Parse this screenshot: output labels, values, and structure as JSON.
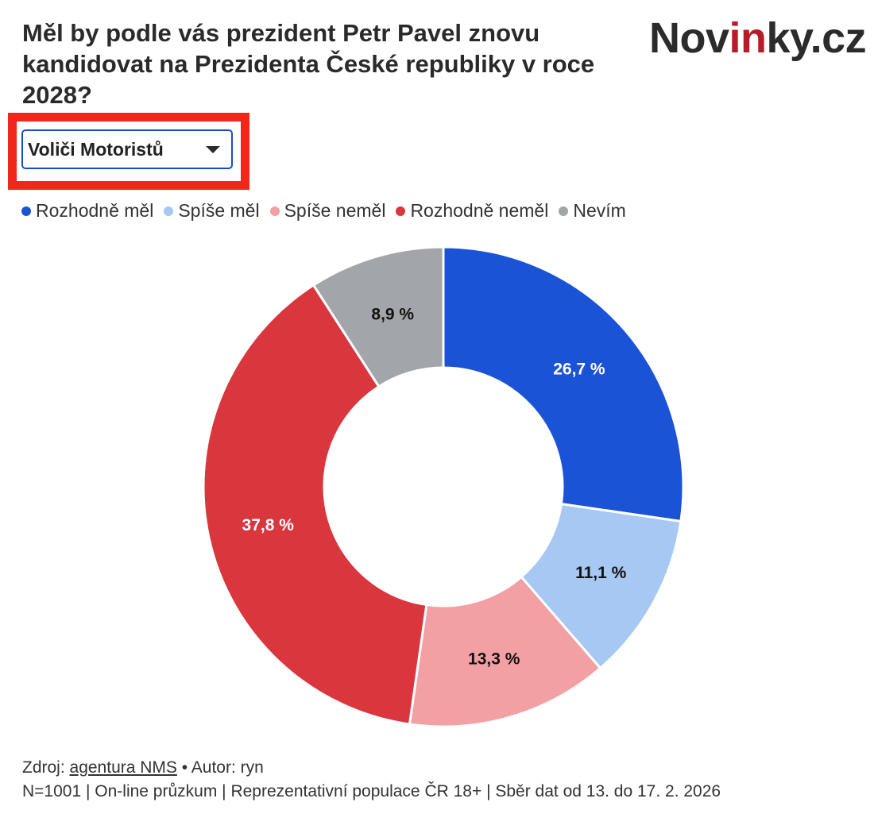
{
  "header": {
    "title": "Měl by podle vás prezident Petr Pavel znovu kandidovat na Prezidenta České republiky v roce 2028?",
    "logo": {
      "part1": "Nov",
      "part2": "in",
      "part3": "ky.cz",
      "accent_color": "#b71c2b"
    }
  },
  "filter": {
    "selected": "Voliči Motoristů",
    "icon": "chevron-down-icon",
    "highlight_color": "#f0281c",
    "border_color": "#1a4ac7"
  },
  "chart_data": {
    "type": "pie",
    "variant": "donut",
    "legend_position": "top-left",
    "slices": [
      {
        "name": "Rozhodně měl",
        "value": 26.7,
        "label": "26,7 %",
        "color": "#1a53d6",
        "label_color": "#ffffff"
      },
      {
        "name": "Spíše měl",
        "value": 11.1,
        "label": "11,1 %",
        "color": "#a6c8f3",
        "label_color": "#111111"
      },
      {
        "name": "Spíše neměl",
        "value": 13.3,
        "label": "13,3 %",
        "color": "#f2a0a3",
        "label_color": "#111111"
      },
      {
        "name": "Rozhodně neměl",
        "value": 37.8,
        "label": "37,8 %",
        "color": "#d9363e",
        "label_color": "#ffffff"
      },
      {
        "name": "Nevím",
        "value": 8.9,
        "label": "8,9 %",
        "color": "#a2a5a9",
        "label_color": "#111111"
      }
    ]
  },
  "footer": {
    "source_prefix": "Zdroj: ",
    "source_link": "agentura NMS",
    "author": " • Autor: ryn",
    "methodology": "N=1001 | On-line průzkum | Reprezentativní populace ČR 18+ | Sběr dat od 13. do 17. 2. 2026"
  }
}
